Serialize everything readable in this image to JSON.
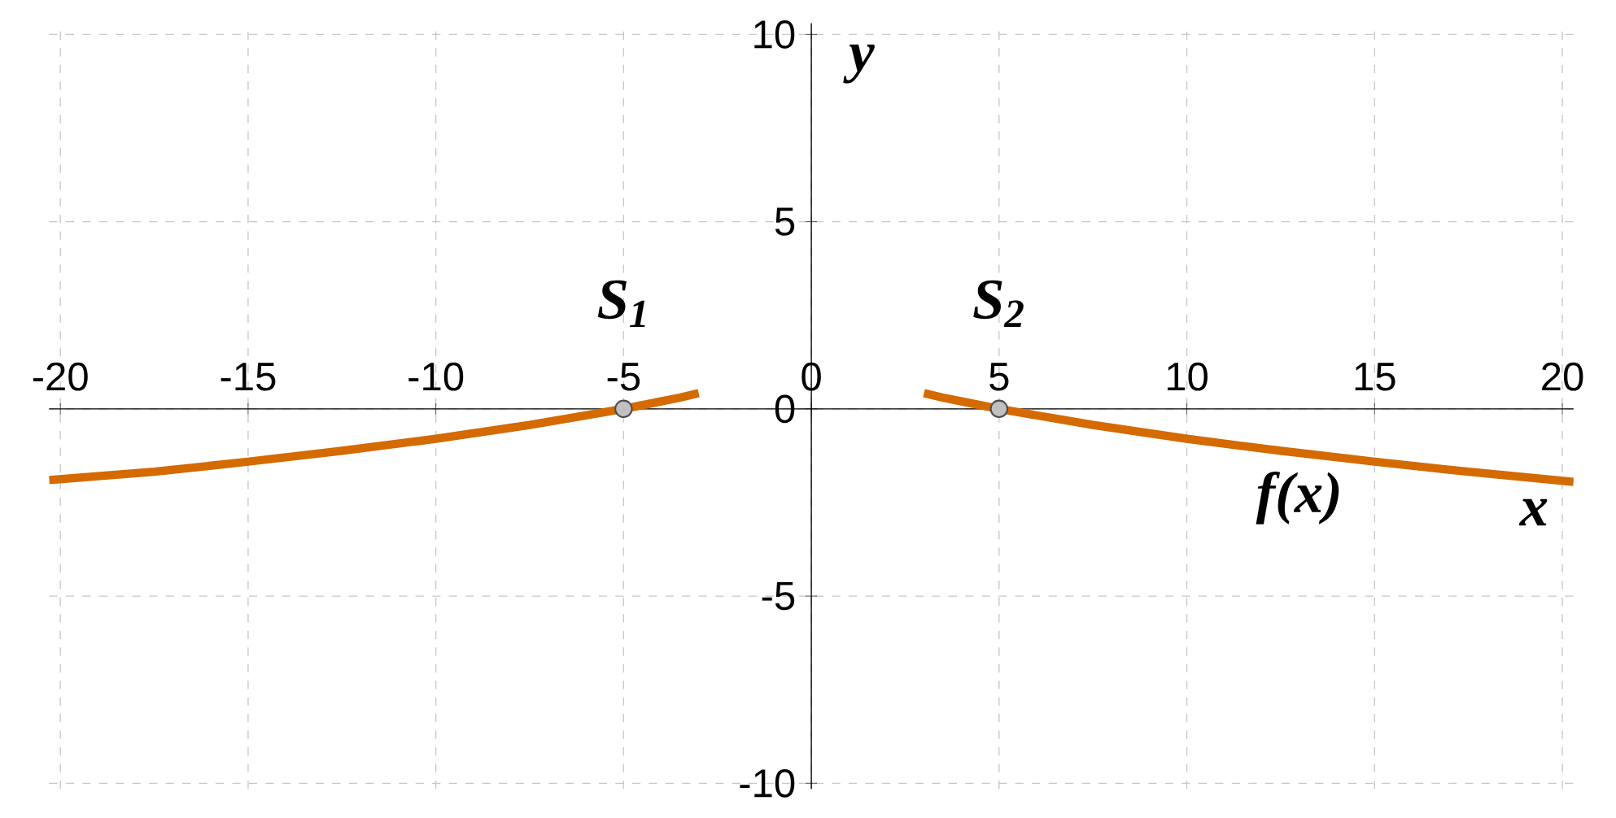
{
  "chart_data": {
    "type": "line",
    "xlabel": "x",
    "ylabel": "y",
    "xlim": [
      -20.3,
      20.3
    ],
    "ylim": [
      -10.15,
      10.3
    ],
    "xticks": [
      -20,
      -15,
      -10,
      -5,
      0,
      5,
      10,
      15,
      20
    ],
    "yticks": [
      -10,
      -5,
      0,
      5,
      10
    ],
    "grid": true,
    "series": [
      {
        "color": "#d46a00",
        "x": [
          -20.3,
          -17.5,
          -15,
          -12.5,
          -10,
          -7.5,
          -5,
          -4,
          -3.5,
          -3
        ],
        "values": [
          -1.9,
          -1.68,
          -1.41,
          -1.12,
          -0.8,
          -0.43,
          0,
          0.2,
          0.3,
          0.42
        ]
      },
      {
        "color": "#d46a00",
        "x": [
          3,
          3.5,
          4,
          5,
          7.5,
          10,
          12.5,
          15,
          17.5,
          20.3
        ],
        "values": [
          0.42,
          0.3,
          0.2,
          0,
          -0.43,
          -0.8,
          -1.12,
          -1.41,
          -1.68,
          -1.95
        ]
      },
      {
        "type": "scatter",
        "color": "#c0c0c0",
        "x": [
          -5,
          5
        ],
        "values": [
          0,
          0
        ]
      }
    ],
    "annotations": [
      {
        "text": "S$_{1}$",
        "x": -5,
        "y": 0
      },
      {
        "text": "S$_{2}$",
        "x": 5,
        "y": 0
      },
      "f(x)"
    ]
  }
}
